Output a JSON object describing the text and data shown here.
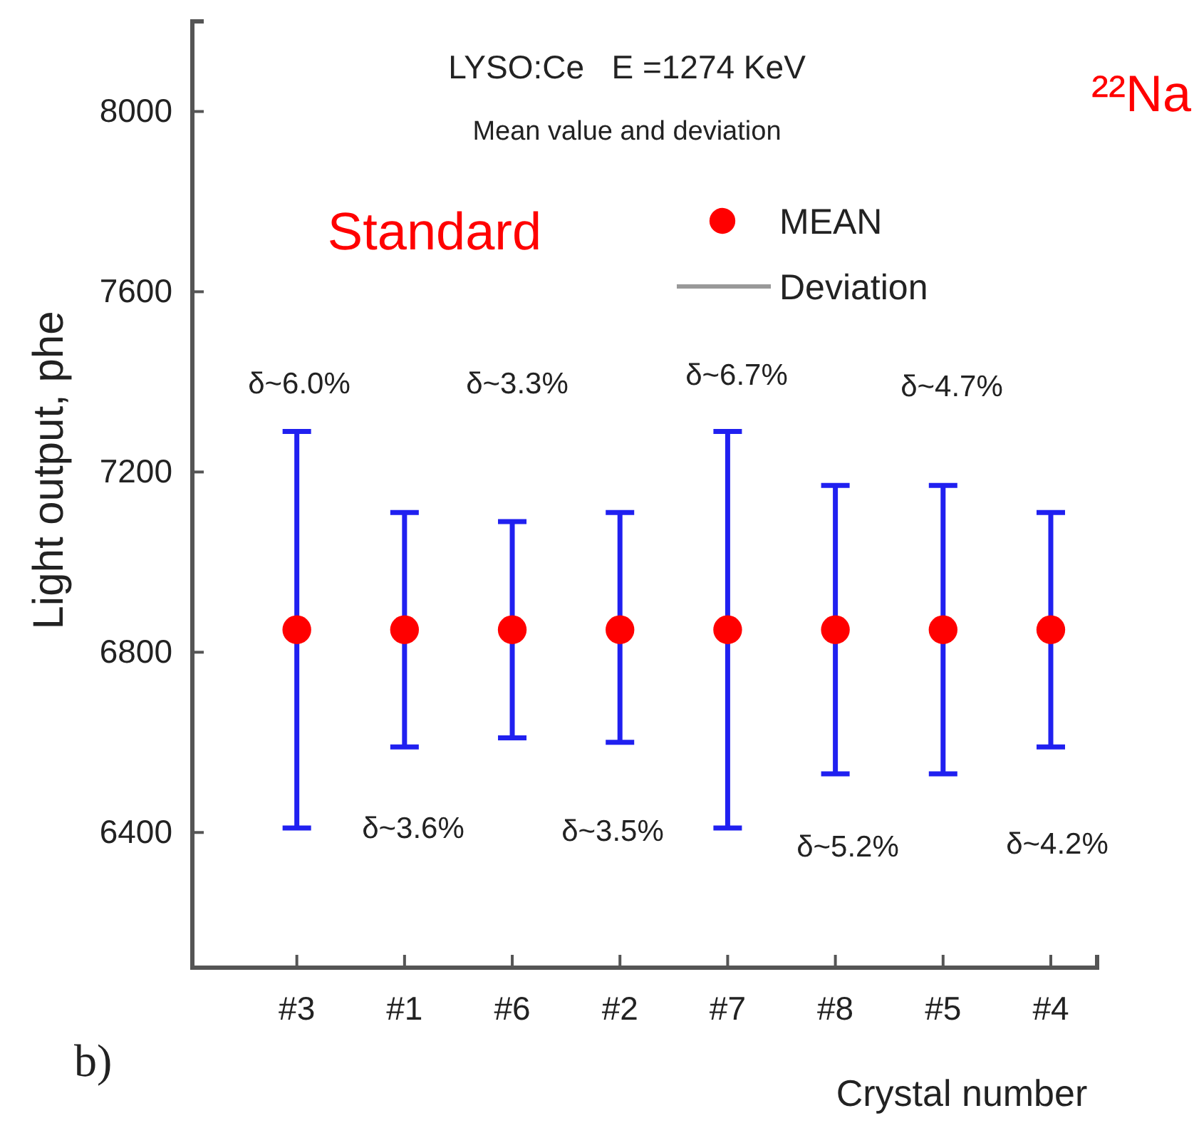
{
  "chart_data": {
    "type": "scatter",
    "title": "LYSO:Ce   E =1274 KeV",
    "subtitle": "Mean value and deviation",
    "xlabel": "Crystal number",
    "ylabel": "Light output, phe",
    "categories": [
      "#3",
      "#1",
      "#6",
      "#2",
      "#7",
      "#8",
      "#5",
      "#4"
    ],
    "series": [
      {
        "name": "MEAN",
        "color": "#ff0000",
        "values": [
          6850,
          6850,
          6850,
          6850,
          6850,
          6850,
          6850,
          6850
        ],
        "errors": [
          [
            6410,
            7290
          ],
          [
            6590,
            7110
          ],
          [
            6610,
            7090
          ],
          [
            6600,
            7110
          ],
          [
            6410,
            7290
          ],
          [
            6530,
            7170
          ],
          [
            6530,
            7170
          ],
          [
            6590,
            7110
          ]
        ]
      }
    ],
    "ylim": [
      6100,
      8200
    ],
    "yticks": [
      6400,
      6800,
      7200,
      7600,
      8000
    ],
    "marker": "circle",
    "legend": "top right",
    "grid": false,
    "annotations": [
      "Standard",
      "²²Na",
      "Deviation",
      "b)",
      "δ~6.0%",
      "δ~3.6%",
      "δ~3.3%",
      "δ~3.5%",
      "δ~6.7%",
      "δ~5.2%",
      "δ~4.7%",
      "δ~4.2%"
    ]
  }
}
